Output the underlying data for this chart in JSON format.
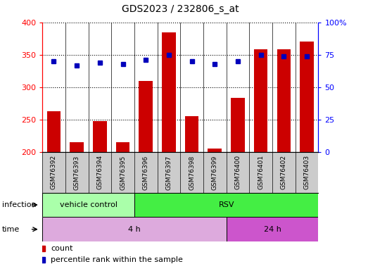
{
  "title": "GDS2023 / 232806_s_at",
  "samples": [
    "GSM76392",
    "GSM76393",
    "GSM76394",
    "GSM76395",
    "GSM76396",
    "GSM76397",
    "GSM76398",
    "GSM76399",
    "GSM76400",
    "GSM76401",
    "GSM76402",
    "GSM76403"
  ],
  "counts": [
    263,
    215,
    247,
    215,
    310,
    385,
    255,
    205,
    283,
    358,
    358,
    370
  ],
  "percentile_ranks": [
    70,
    67,
    69,
    68,
    71,
    75,
    70,
    68,
    70,
    75,
    74,
    74
  ],
  "ylim_left": [
    200,
    400
  ],
  "ylim_right": [
    0,
    100
  ],
  "yticks_left": [
    200,
    250,
    300,
    350,
    400
  ],
  "yticks_right": [
    0,
    25,
    50,
    75,
    100
  ],
  "ytick_labels_right": [
    "0",
    "25",
    "50",
    "75",
    "100%"
  ],
  "bar_color": "#cc0000",
  "dot_color": "#0000bb",
  "bar_bottom": 200,
  "infection_groups": [
    {
      "label": "vehicle control",
      "start": 0,
      "end": 4,
      "color": "#aaffaa"
    },
    {
      "label": "RSV",
      "start": 4,
      "end": 12,
      "color": "#44ee44"
    }
  ],
  "time_groups": [
    {
      "label": "4 h",
      "start": 0,
      "end": 8,
      "color": "#ddaadd"
    },
    {
      "label": "24 h",
      "start": 8,
      "end": 12,
      "color": "#cc55cc"
    }
  ],
  "plot_bg": "#ffffff",
  "label_bg": "#cccccc",
  "label_infection": "infection",
  "label_time": "time",
  "legend_count": "count",
  "legend_percentile": "percentile rank within the sample"
}
